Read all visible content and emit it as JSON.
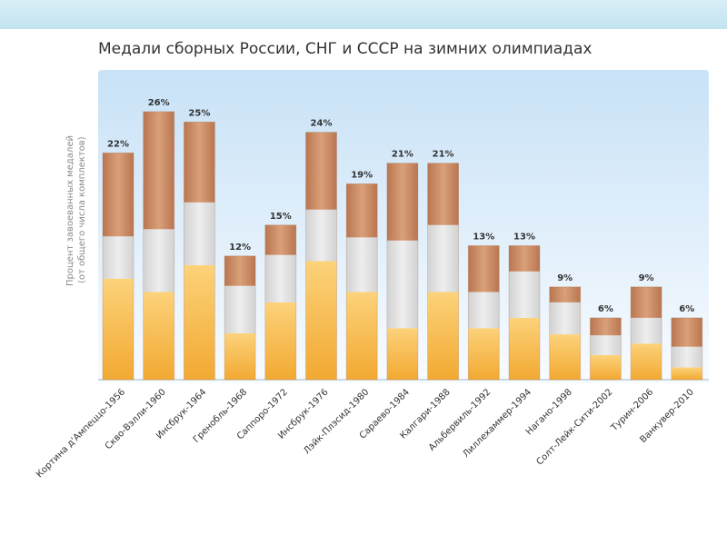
{
  "title": "Медали сборных России, СНГ и СССР на зимних олимпиадах",
  "colors": {
    "gold": "#f6b84a",
    "silver": "#dcdcdc",
    "bronze": "#c98a62",
    "plot_bg_top": "#c8e2f7",
    "plot_bg_bottom": "#f8fbff"
  },
  "chart_data": {
    "type": "bar",
    "stacked": true,
    "title": "Медали сборных России, СНГ и СССР на зимних олимпиадах",
    "ylabel_lines": [
      "Процент завоеванных медалей",
      "(от общего числа комплектов)"
    ],
    "ylim": [
      0,
      28
    ],
    "categories": [
      "Кортина д'Ампеццо-1956",
      "Скво-Вэлли-1960",
      "Инсбрук-1964",
      "Гренобль-1968",
      "Саппоро-1972",
      "Инсбрук-1976",
      "Лэйк-Плэсид-1980",
      "Сараево-1984",
      "Калгари-1988",
      "Альбервиль-1992",
      "Лиллехаммер-1994",
      "Нагано-1998",
      "Солт-Лейк-Сити-2002",
      "Турин-2006",
      "Ванкувер-2010"
    ],
    "total_labels": [
      "22%",
      "26%",
      "25%",
      "12%",
      "15%",
      "24%",
      "19%",
      "21%",
      "21%",
      "13%",
      "13%",
      "9%",
      "6%",
      "9%",
      "6%"
    ],
    "series": [
      {
        "key": "gold",
        "values": [
          9.8,
          8.5,
          11.1,
          4.5,
          7.5,
          11.5,
          8.5,
          5.0,
          8.5,
          5.0,
          6.0,
          4.4,
          2.4,
          3.5,
          1.2
        ]
      },
      {
        "key": "silver",
        "values": [
          4.1,
          6.1,
          6.1,
          4.6,
          4.6,
          5.0,
          5.3,
          8.5,
          6.5,
          3.5,
          4.5,
          3.1,
          1.9,
          2.5,
          2.0
        ]
      },
      {
        "key": "bronze",
        "values": [
          8.1,
          11.4,
          7.8,
          2.9,
          2.9,
          7.5,
          5.2,
          7.5,
          6.0,
          4.5,
          2.5,
          1.5,
          1.7,
          3.0,
          2.8
        ]
      }
    ]
  }
}
